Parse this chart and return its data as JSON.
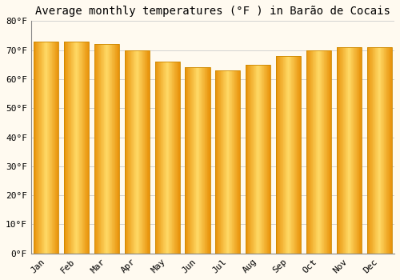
{
  "title": "Average monthly temperatures (°F ) in Barão de Cocais",
  "months": [
    "Jan",
    "Feb",
    "Mar",
    "Apr",
    "May",
    "Jun",
    "Jul",
    "Aug",
    "Sep",
    "Oct",
    "Nov",
    "Dec"
  ],
  "values": [
    73,
    73,
    72,
    70,
    66,
    64,
    63,
    65,
    68,
    70,
    71,
    71
  ],
  "bar_color_center": "#FFD966",
  "bar_color_edge": "#E8920A",
  "background_color": "#FFFAF0",
  "grid_color": "#CCCCCC",
  "ylim": [
    0,
    80
  ],
  "yticks": [
    0,
    10,
    20,
    30,
    40,
    50,
    60,
    70,
    80
  ],
  "ytick_labels": [
    "0°F",
    "10°F",
    "20°F",
    "30°F",
    "40°F",
    "50°F",
    "60°F",
    "70°F",
    "80°F"
  ],
  "tick_fontsize": 8,
  "title_fontsize": 10,
  "bar_width": 0.82
}
